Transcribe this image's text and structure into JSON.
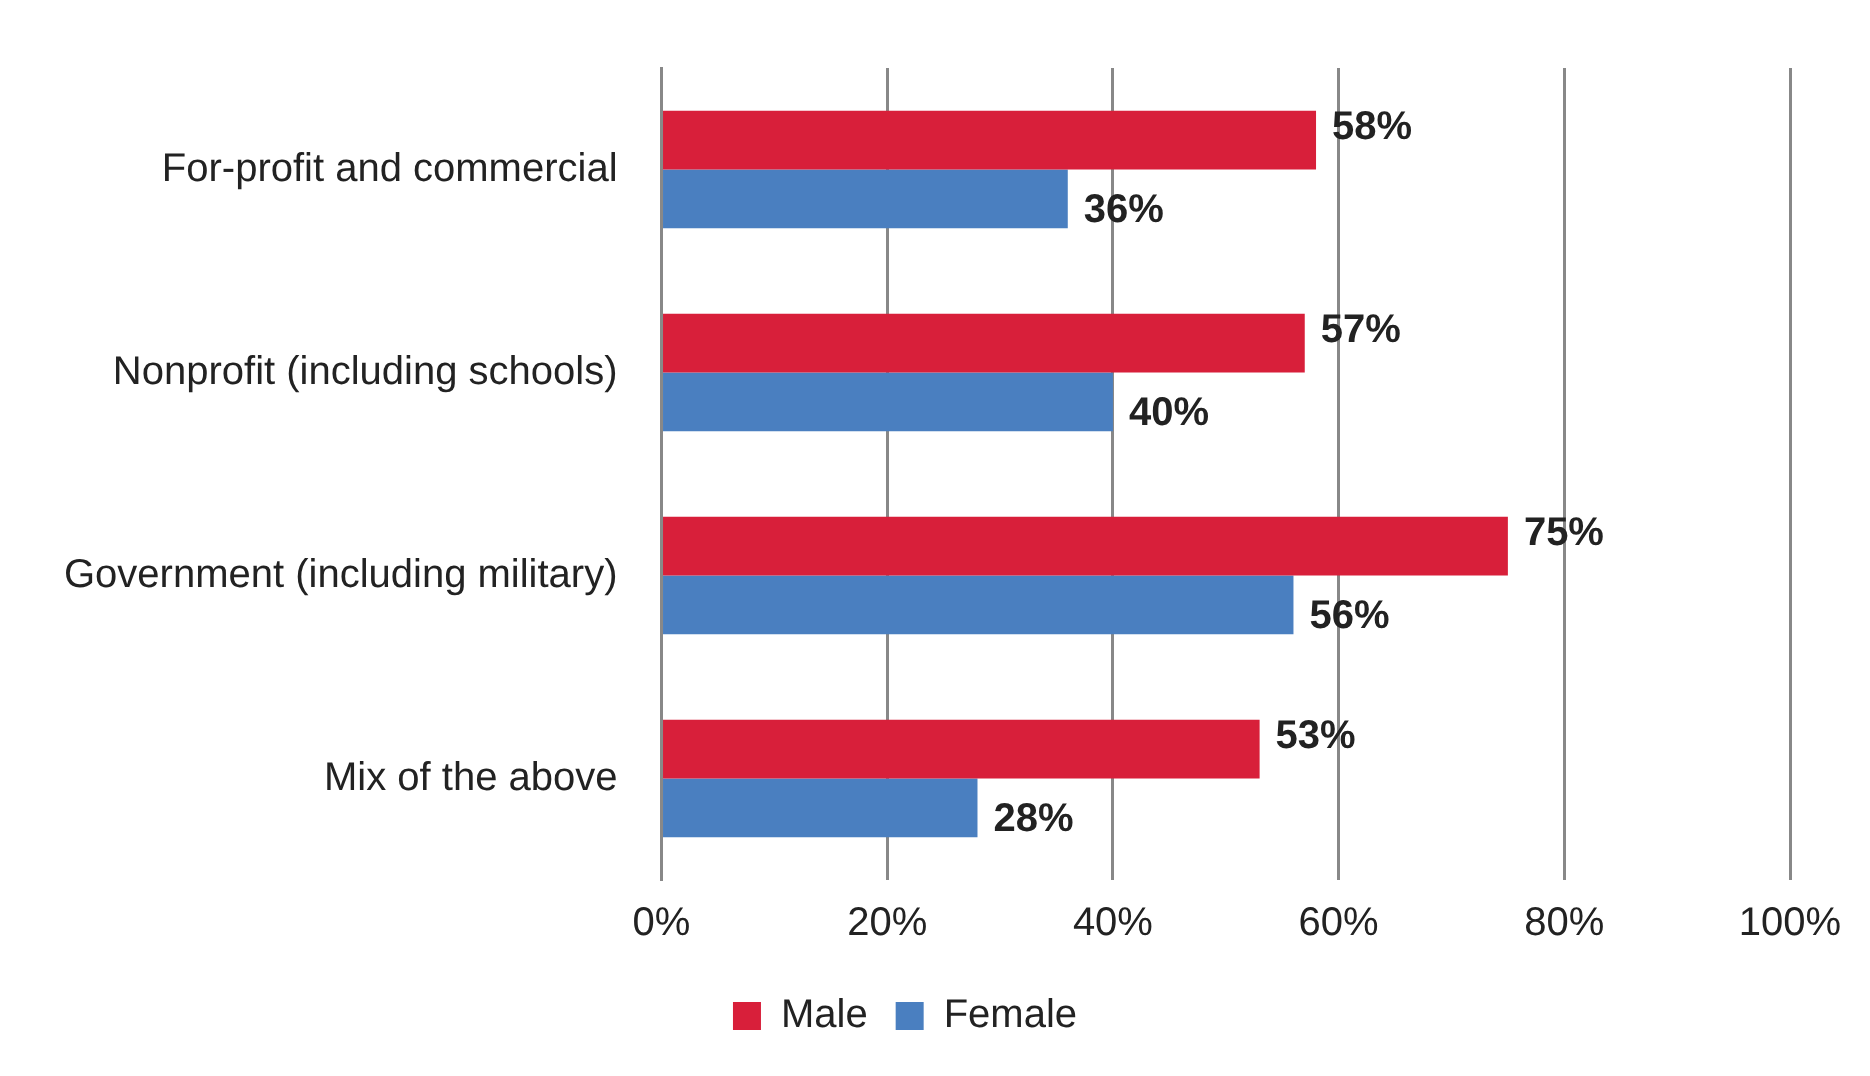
{
  "chart_data": {
    "type": "bar",
    "orientation": "horizontal",
    "categories": [
      "For-profit and commercial",
      "Nonprofit (including schools)",
      "Government (including military)",
      "Mix of the above"
    ],
    "series": [
      {
        "name": "Male",
        "color": "#d81f3a",
        "values": [
          58,
          57,
          75,
          53
        ],
        "value_labels": [
          "58%",
          "57%",
          "75%",
          "53%"
        ]
      },
      {
        "name": "Female",
        "color": "#4a7fc0",
        "values": [
          36,
          40,
          56,
          28
        ],
        "value_labels": [
          "36%",
          "40%",
          "56%",
          "28%"
        ]
      }
    ],
    "xlim": [
      0,
      100
    ],
    "xticks": [
      {
        "value": 0,
        "label": "0%"
      },
      {
        "value": 20,
        "label": "20%"
      },
      {
        "value": 40,
        "label": "40%"
      },
      {
        "value": 60,
        "label": "60%"
      },
      {
        "value": 80,
        "label": "80%"
      },
      {
        "value": 100,
        "label": "100%"
      }
    ],
    "grid": "x",
    "legend": "bottom"
  }
}
